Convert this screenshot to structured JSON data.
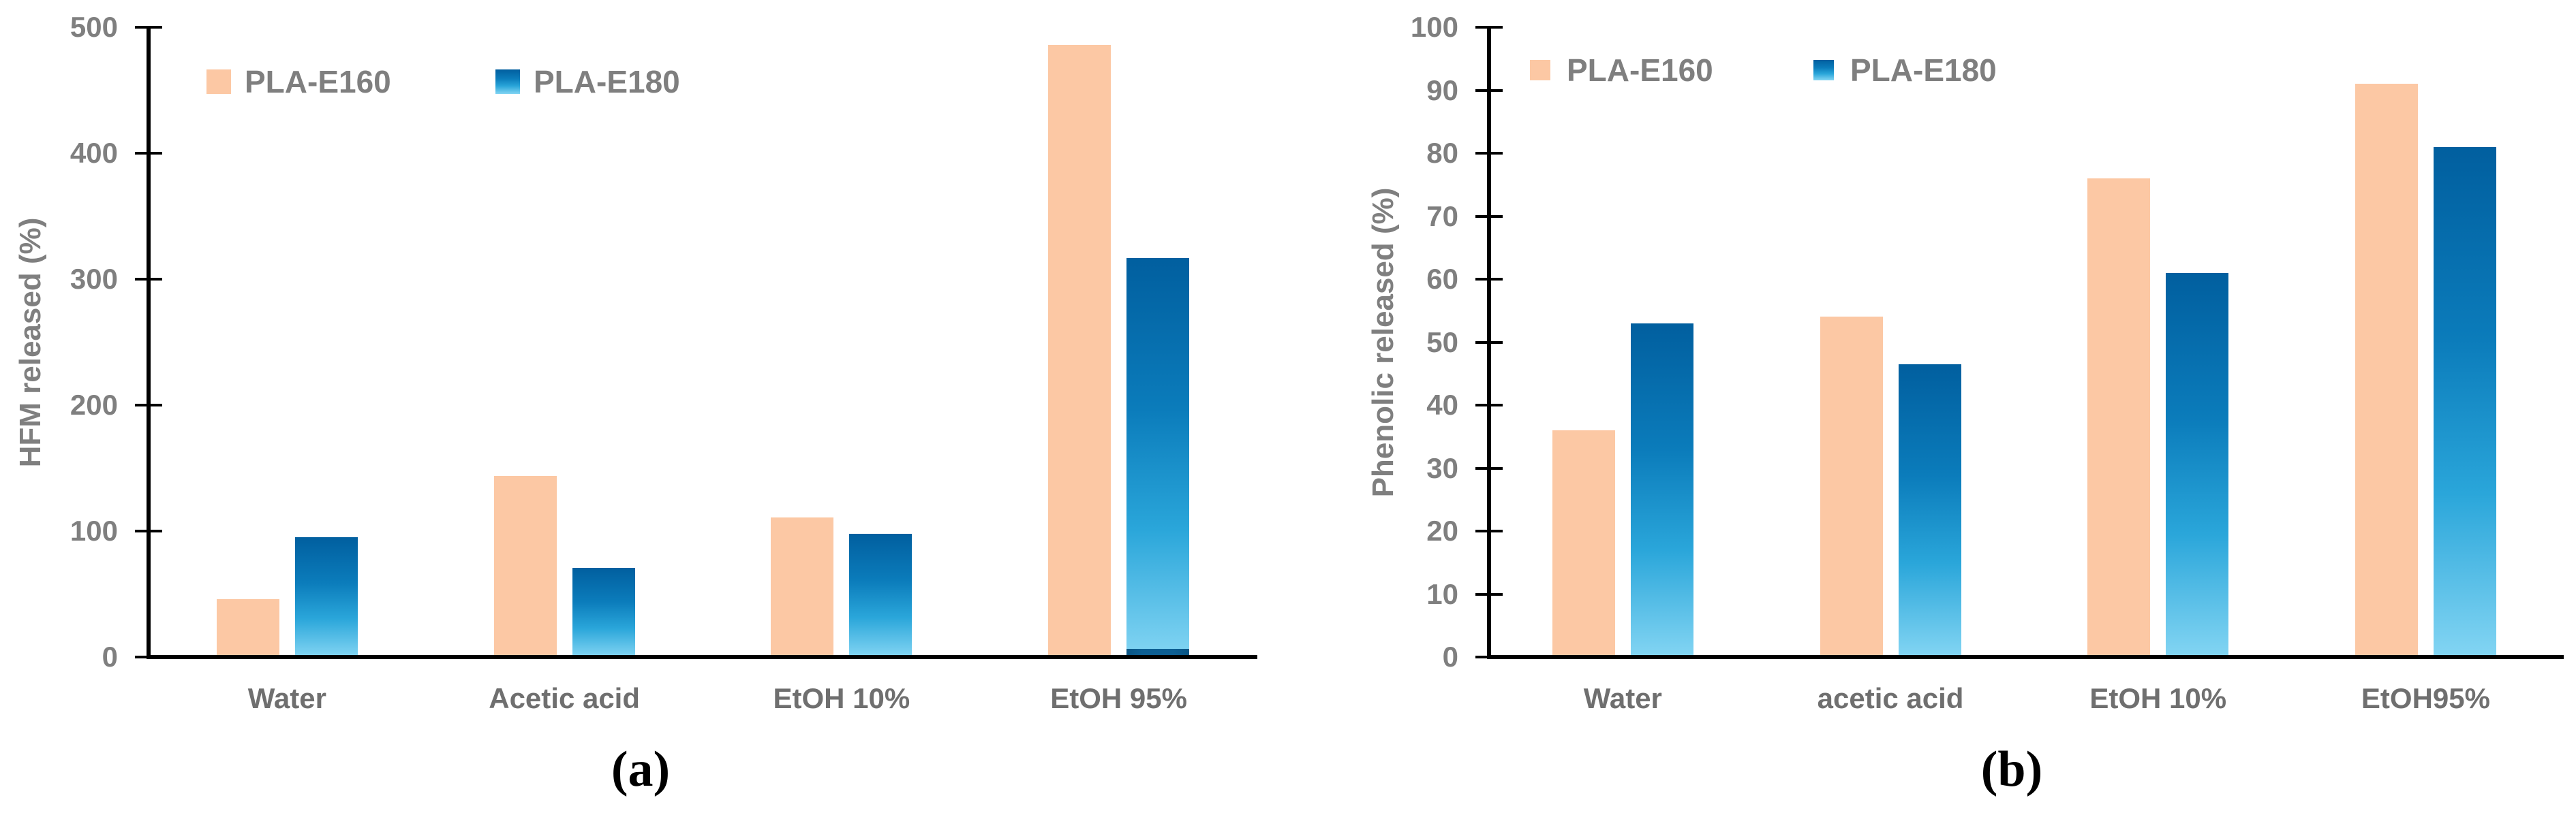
{
  "colors": {
    "background": "#ffffff",
    "series_pla_e160": "#fcc8a4",
    "series_pla_e180_gradient": [
      "#015f9f",
      "#0b7cbb",
      "#2aa6da",
      "#83d5f3"
    ],
    "axis": "#000000",
    "tick_label": "#7f7f7f",
    "category_label": "#6f6f6f",
    "legend_label": "#7f7f7f",
    "caption": "#000000"
  },
  "chart_data": [
    {
      "type": "bar",
      "panel": "a",
      "caption": "(a)",
      "title": "",
      "xlabel": "",
      "ylabel": "HFM released (%)",
      "ylim": [
        0,
        500
      ],
      "ytick_step": 100,
      "ytick_labels": [
        "500",
        "400",
        "300",
        "200",
        "100",
        "0"
      ],
      "grid": false,
      "legend_position": "top-left",
      "categories": [
        "Water",
        "Acetic acid",
        "EtOH 10%",
        "EtOH 95%"
      ],
      "series": [
        {
          "name": "PLA-E160",
          "values": [
            46,
            144,
            111,
            486
          ]
        },
        {
          "name": "PLA-E180",
          "values": [
            95,
            71,
            98,
            317
          ]
        }
      ]
    },
    {
      "type": "bar",
      "panel": "b",
      "caption": "(b)",
      "title": "",
      "xlabel": "",
      "ylabel": "Phenolic released (%)",
      "ylim": [
        0,
        100
      ],
      "ytick_step": 10,
      "ytick_labels": [
        "100",
        "90",
        "80",
        "70",
        "60",
        "50",
        "40",
        "30",
        "20",
        "10",
        "0"
      ],
      "grid": false,
      "legend_position": "top-left",
      "categories": [
        "Water",
        "acetic acid",
        "EtOH 10%",
        "EtOH95%"
      ],
      "series": [
        {
          "name": "PLA-E160",
          "values": [
            36,
            54,
            76,
            91
          ]
        },
        {
          "name": "PLA-E180",
          "values": [
            53,
            46.5,
            61,
            81
          ]
        }
      ]
    }
  ]
}
